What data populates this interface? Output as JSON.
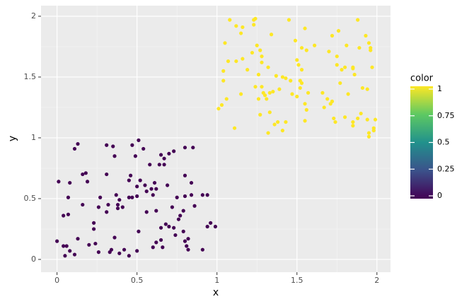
{
  "chart_data": {
    "type": "scatter",
    "x_label": "x",
    "y_label": "y",
    "xlim": [
      -0.1,
      2.085
    ],
    "ylim": [
      -0.105,
      2.087
    ],
    "xticks": [
      0,
      0.5,
      1,
      1.5,
      2
    ],
    "yticks": [
      0,
      0.5,
      1,
      1.5,
      2
    ],
    "grid": true,
    "minor_grid": true,
    "colorbar": {
      "title": "color",
      "lim": [
        0,
        1
      ],
      "ticks": [
        0,
        0.25,
        0.5,
        0.75,
        1
      ]
    },
    "series": [
      {
        "color_value": 0,
        "x": [
          0.0,
          0.01,
          0.04,
          0.04,
          0.05,
          0.06,
          0.07,
          0.07,
          0.08,
          0.08,
          0.11,
          0.11,
          0.13,
          0.13,
          0.16,
          0.16,
          0.18,
          0.19,
          0.2,
          0.23,
          0.23,
          0.24,
          0.26,
          0.26,
          0.27,
          0.31,
          0.31,
          0.31,
          0.32,
          0.33,
          0.34,
          0.35,
          0.36,
          0.36,
          0.38,
          0.37,
          0.38,
          0.39,
          0.39,
          0.41,
          0.42,
          0.45,
          0.45,
          0.46,
          0.45,
          0.47,
          0.47,
          0.49,
          0.5,
          0.5,
          0.5,
          0.51,
          0.51,
          0.52,
          0.54,
          0.55,
          0.56,
          0.56,
          0.58,
          0.59,
          0.6,
          0.6,
          0.61,
          0.62,
          0.62,
          0.62,
          0.64,
          0.65,
          0.65,
          0.65,
          0.66,
          0.67,
          0.67,
          0.68,
          0.69,
          0.7,
          0.7,
          0.72,
          0.73,
          0.73,
          0.74,
          0.75,
          0.76,
          0.77,
          0.79,
          0.79,
          0.8,
          0.8,
          0.8,
          0.81,
          0.82,
          0.82,
          0.84,
          0.84,
          0.85,
          0.86,
          0.91,
          0.91,
          0.94,
          0.94,
          0.96,
          0.99,
          0.8
        ],
        "y": [
          0.15,
          0.64,
          0.36,
          0.11,
          0.03,
          0.11,
          0.51,
          0.37,
          0.07,
          0.63,
          0.91,
          0.04,
          0.17,
          0.95,
          0.45,
          0.7,
          0.71,
          0.64,
          0.12,
          0.3,
          0.25,
          0.13,
          0.06,
          0.43,
          0.51,
          0.7,
          0.39,
          0.94,
          0.45,
          0.06,
          0.08,
          0.93,
          0.18,
          0.85,
          0.45,
          0.53,
          0.42,
          0.49,
          0.05,
          0.43,
          0.08,
          0.65,
          0.51,
          0.69,
          0.03,
          0.94,
          0.51,
          0.85,
          0.6,
          0.07,
          0.52,
          0.23,
          0.98,
          0.65,
          0.91,
          0.61,
          0.39,
          0.56,
          0.78,
          0.58,
          0.53,
          0.1,
          0.63,
          0.58,
          0.4,
          0.14,
          0.78,
          0.86,
          0.16,
          0.26,
          0.1,
          0.78,
          0.83,
          0.29,
          0.61,
          0.27,
          0.87,
          0.43,
          0.26,
          0.89,
          0.2,
          0.51,
          0.33,
          0.36,
          0.4,
          0.23,
          0.52,
          0.69,
          0.92,
          0.11,
          0.17,
          0.08,
          0.63,
          0.53,
          0.92,
          0.44,
          0.08,
          0.53,
          0.53,
          0.27,
          0.3,
          0.27,
          0.15
        ]
      },
      {
        "color_value": 1,
        "x": [
          1.01,
          1.03,
          1.04,
          1.04,
          1.05,
          1.06,
          1.08,
          1.07,
          1.11,
          1.12,
          1.12,
          1.15,
          1.15,
          1.16,
          1.16,
          1.19,
          1.22,
          1.23,
          1.23,
          1.24,
          1.24,
          1.25,
          1.26,
          1.26,
          1.27,
          1.27,
          1.28,
          1.28,
          1.28,
          1.29,
          1.3,
          1.31,
          1.32,
          1.32,
          1.33,
          1.33,
          1.34,
          1.35,
          1.36,
          1.37,
          1.38,
          1.39,
          1.41,
          1.41,
          1.43,
          1.43,
          1.45,
          1.46,
          1.47,
          1.49,
          1.5,
          1.5,
          1.51,
          1.52,
          1.52,
          1.53,
          1.53,
          1.53,
          1.55,
          1.55,
          1.55,
          1.56,
          1.56,
          1.57,
          1.61,
          1.66,
          1.67,
          1.69,
          1.7,
          1.71,
          1.72,
          1.72,
          1.73,
          1.74,
          1.75,
          1.75,
          1.76,
          1.77,
          1.78,
          1.8,
          1.8,
          1.81,
          1.82,
          1.85,
          1.85,
          1.85,
          1.85,
          1.86,
          1.88,
          1.88,
          1.89,
          1.9,
          1.91,
          1.93,
          1.94,
          1.94,
          1.95,
          1.95,
          1.96,
          1.96,
          1.97,
          1.98,
          1.98,
          1.99,
          1.95
        ],
        "y": [
          1.24,
          1.27,
          1.55,
          1.47,
          1.78,
          1.32,
          1.97,
          1.63,
          1.08,
          1.63,
          1.92,
          1.86,
          1.36,
          1.91,
          1.65,
          1.56,
          1.7,
          1.93,
          1.97,
          1.98,
          1.42,
          1.76,
          1.32,
          1.52,
          1.72,
          1.19,
          1.67,
          1.42,
          1.62,
          1.37,
          1.35,
          1.32,
          1.04,
          1.58,
          1.21,
          1.37,
          1.85,
          1.38,
          1.11,
          1.51,
          1.13,
          1.4,
          1.06,
          1.5,
          1.49,
          1.13,
          1.97,
          1.47,
          1.36,
          1.8,
          1.34,
          1.64,
          1.6,
          1.47,
          1.41,
          1.74,
          1.56,
          1.45,
          1.9,
          1.28,
          1.14,
          1.23,
          1.72,
          1.37,
          1.76,
          1.37,
          1.25,
          1.32,
          1.71,
          1.28,
          1.84,
          1.3,
          1.16,
          1.13,
          1.67,
          1.6,
          1.88,
          1.45,
          1.56,
          1.58,
          1.17,
          1.76,
          1.36,
          1.58,
          1.57,
          1.13,
          1.1,
          1.52,
          1.97,
          1.16,
          1.74,
          1.2,
          1.41,
          1.84,
          1.4,
          1.15,
          1.01,
          1.78,
          1.74,
          1.72,
          1.58,
          1.06,
          1.08,
          1.15,
          1.04
        ]
      }
    ]
  }
}
